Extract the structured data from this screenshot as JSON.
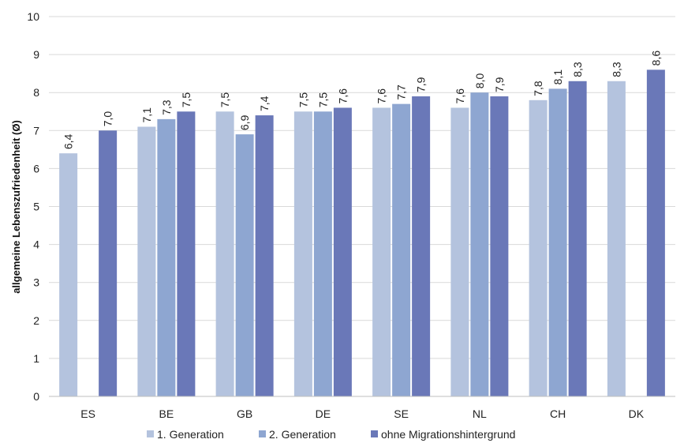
{
  "chart_data": {
    "type": "bar",
    "ylabel": "allgemeine Lebenszufriedenheit (Ø)",
    "xlabel": "",
    "ylim": [
      0,
      10
    ],
    "yticks": [
      0,
      1,
      2,
      3,
      4,
      5,
      6,
      7,
      8,
      9,
      10
    ],
    "grid": true,
    "legend_position": "bottom",
    "categories": [
      "ES",
      "BE",
      "GB",
      "DE",
      "SE",
      "NL",
      "CH",
      "DK"
    ],
    "series": [
      {
        "name": "1. Generation",
        "color": "#b4c3de",
        "values": [
          6.4,
          7.1,
          7.5,
          7.5,
          7.6,
          7.6,
          7.8,
          8.3
        ],
        "labels": [
          "6,4",
          "7,1",
          "7,5",
          "7,5",
          "7,6",
          "7,6",
          "7,8",
          "8,3"
        ]
      },
      {
        "name": "2. Generation",
        "color": "#8ea6d1",
        "values": [
          null,
          7.3,
          6.9,
          7.5,
          7.7,
          8.0,
          8.1,
          null
        ],
        "labels": [
          "",
          "7,3",
          "6,9",
          "7,5",
          "7,7",
          "8,0",
          "8,1",
          ""
        ]
      },
      {
        "name": "ohne Migrationshintergrund",
        "color": "#6a78b8",
        "values": [
          7.0,
          7.5,
          7.4,
          7.6,
          7.9,
          7.9,
          8.3,
          8.6
        ],
        "labels": [
          "7,0",
          "7,5",
          "7,4",
          "7,6",
          "7,9",
          "7,9",
          "8,3",
          "8,6"
        ]
      }
    ]
  }
}
